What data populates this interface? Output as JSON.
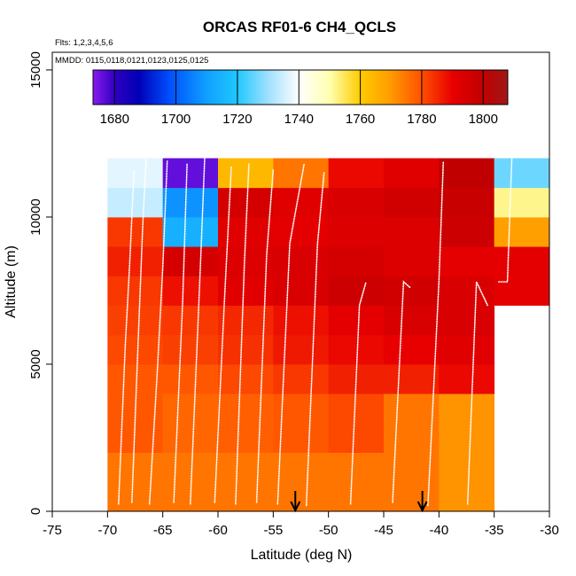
{
  "chart_data": {
    "type": "heatmap",
    "title": "ORCAS RF01-6 CH4_QCLS",
    "note_flights": "Flts: 1,2,3,4,5,6",
    "note_dates": "MMDD: 0115,0118,0121,0123,0125,0125",
    "xlabel": "Latitude (deg N)",
    "ylabel": "Altitude (m)",
    "xlim": [
      -75,
      -30
    ],
    "ylim": [
      0,
      15600
    ],
    "x_ticks": [
      -75,
      -70,
      -65,
      -60,
      -55,
      -50,
      -45,
      -40,
      -35,
      -30
    ],
    "y_ticks": [
      0,
      5000,
      10000,
      15000
    ],
    "colorbar": {
      "range": [
        1673,
        1808
      ],
      "ticks": [
        1680,
        1700,
        1720,
        1740,
        1760,
        1780,
        1800
      ],
      "stops": [
        [
          1673,
          "#8a1af0"
        ],
        [
          1680,
          "#3000c0"
        ],
        [
          1688,
          "#0000b8"
        ],
        [
          1698,
          "#0050ff"
        ],
        [
          1710,
          "#10a0ff"
        ],
        [
          1720,
          "#20c8ff"
        ],
        [
          1730,
          "#a0e0ff"
        ],
        [
          1740,
          "#ffffff"
        ],
        [
          1750,
          "#ffffb0"
        ],
        [
          1760,
          "#ffcc00"
        ],
        [
          1770,
          "#ff9a00"
        ],
        [
          1780,
          "#ff5000"
        ],
        [
          1790,
          "#e80000"
        ],
        [
          1800,
          "#c00000"
        ],
        [
          1808,
          "#a01818"
        ]
      ]
    },
    "lat_edges": [
      -70,
      -65,
      -60,
      -55,
      -50,
      -45,
      -40,
      -35,
      -30
    ],
    "alt_edges": [
      0,
      2000,
      4000,
      5000,
      6000,
      7000,
      8000,
      9000,
      10000,
      11000,
      12000
    ],
    "cells": [
      [
        1775,
        1775,
        1775,
        1775,
        1775,
        1775,
        1771,
        null
      ],
      [
        1779,
        1777,
        1778,
        1779,
        1781,
        1775,
        1771,
        null
      ],
      [
        1779,
        1779,
        1781,
        1783,
        1786,
        1786,
        1789,
        null
      ],
      [
        1781,
        1782,
        1784,
        1787,
        1789,
        1790,
        1792,
        null
      ],
      [
        1782,
        1783,
        1785,
        1788,
        1791,
        1794,
        1794,
        null
      ],
      [
        1783,
        1788,
        1792,
        1794,
        1797,
        1796,
        1794,
        1791
      ],
      [
        1786,
        1795,
        1793,
        1794,
        1795,
        1793,
        1791,
        1791
      ],
      [
        1783,
        1714,
        1792,
        1791,
        1793,
        1793,
        1797,
        1769
      ],
      [
        1734,
        1708,
        1795,
        1792,
        1794,
        1796,
        1798,
        1752
      ],
      [
        1737,
        1676,
        1764,
        1775,
        1789,
        1792,
        1800,
        1726
      ]
    ],
    "arrows_lat": [
      -53,
      -41.5
    ],
    "flight_tracks": [
      [
        [
          -69.0,
          250
        ],
        [
          -68.4,
          5600
        ],
        [
          -68.0,
          8400
        ],
        [
          -67.6,
          11600
        ]
      ],
      [
        [
          -67.8,
          300
        ],
        [
          -67.2,
          6000
        ],
        [
          -66.8,
          9800
        ],
        [
          -66.5,
          12000
        ]
      ],
      [
        [
          -66.2,
          250
        ],
        [
          -65.5,
          4700
        ],
        [
          -65.0,
          8300
        ],
        [
          -64.6,
          11900
        ]
      ],
      [
        [
          -64.0,
          300
        ],
        [
          -63.2,
          7100
        ],
        [
          -62.8,
          11800
        ]
      ],
      [
        [
          -62.5,
          250
        ],
        [
          -61.6,
          8300
        ],
        [
          -61.2,
          12000
        ]
      ],
      [
        [
          -60.3,
          300
        ],
        [
          -59.4,
          7300
        ],
        [
          -58.8,
          11700
        ]
      ],
      [
        [
          -58.4,
          250
        ],
        [
          -57.6,
          8500
        ],
        [
          -57.2,
          11800
        ]
      ],
      [
        [
          -56.5,
          300
        ],
        [
          -55.6,
          8700
        ],
        [
          -55.0,
          11600
        ]
      ],
      [
        [
          -54.6,
          250
        ],
        [
          -53.5,
          9100
        ],
        [
          -52.2,
          11800
        ]
      ],
      [
        [
          -52.0,
          200
        ],
        [
          -51.0,
          9050
        ],
        [
          -50.4,
          11500
        ]
      ],
      [
        [
          -48.0,
          250
        ],
        [
          -47.2,
          7000
        ],
        [
          -46.6,
          7800
        ]
      ],
      [
        [
          -44.2,
          300
        ],
        [
          -43.2,
          7800
        ],
        [
          -42.6,
          7600
        ]
      ],
      [
        [
          -41.0,
          200
        ],
        [
          -40.0,
          7800
        ],
        [
          -39.6,
          11900
        ]
      ],
      [
        [
          -37.4,
          250
        ],
        [
          -36.6,
          7800
        ],
        [
          -35.6,
          7000
        ]
      ],
      [
        [
          -34.6,
          7800
        ],
        [
          -33.8,
          7800
        ],
        [
          -33.4,
          12000
        ]
      ]
    ]
  }
}
